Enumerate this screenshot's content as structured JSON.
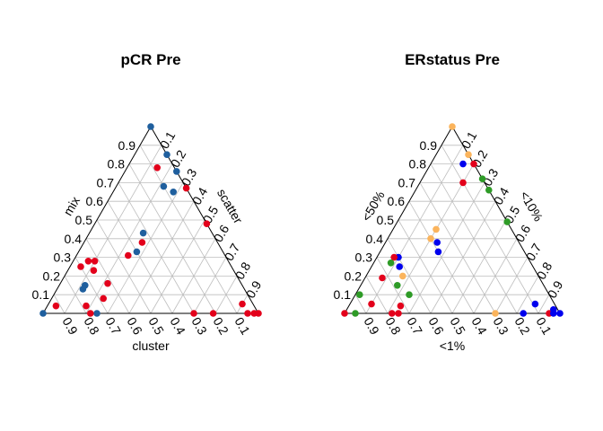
{
  "chart_data": [
    {
      "type": "scatter",
      "subtype": "ternary",
      "title": "pCR Pre",
      "axes": {
        "left": "mix",
        "right": "scatter",
        "bottom": "cluster"
      },
      "ticks": [
        "0.1",
        "0.2",
        "0.3",
        "0.4",
        "0.5",
        "0.6",
        "0.7",
        "0.8",
        "0.9"
      ],
      "grid": true,
      "points_format": "[bottom (cluster), left (mix), right (scatter), color]",
      "points": [
        [
          0.0,
          1.0,
          0.0,
          "#1f5f9e"
        ],
        [
          0.08,
          0.78,
          0.14,
          "#e3001b"
        ],
        [
          0.0,
          0.85,
          0.15,
          "#1f5f9e"
        ],
        [
          0.0,
          0.76,
          0.24,
          "#1f5f9e"
        ],
        [
          0.1,
          0.68,
          0.22,
          "#1f5f9e"
        ],
        [
          0.07,
          0.65,
          0.28,
          "#1f5f9e"
        ],
        [
          0.0,
          0.67,
          0.33,
          "#e3001b"
        ],
        [
          0.0,
          0.48,
          0.52,
          "#e3001b"
        ],
        [
          0.32,
          0.43,
          0.25,
          "#1f5f9e"
        ],
        [
          0.35,
          0.38,
          0.27,
          "#e3001b"
        ],
        [
          0.4,
          0.33,
          0.27,
          "#1f5f9e"
        ],
        [
          0.45,
          0.31,
          0.24,
          "#e3001b"
        ],
        [
          0.65,
          0.28,
          0.07,
          "#e3001b"
        ],
        [
          0.62,
          0.28,
          0.1,
          "#e3001b"
        ],
        [
          0.7,
          0.25,
          0.05,
          "#e3001b"
        ],
        [
          0.65,
          0.23,
          0.12,
          "#e3001b"
        ],
        [
          0.73,
          0.15,
          0.12,
          "#1f5f9e"
        ],
        [
          0.75,
          0.13,
          0.12,
          "#1f5f9e"
        ],
        [
          0.62,
          0.16,
          0.22,
          "#e3001b"
        ],
        [
          0.68,
          0.08,
          0.24,
          "#e3001b"
        ],
        [
          1.0,
          0.0,
          0.0,
          "#1f5f9e"
        ],
        [
          0.92,
          0.04,
          0.04,
          "#e3001b"
        ],
        [
          0.78,
          0.04,
          0.18,
          "#e3001b"
        ],
        [
          0.75,
          0.0,
          0.25,
          "#1f5f9e"
        ],
        [
          0.78,
          0.0,
          0.22,
          "#e3001b"
        ],
        [
          0.3,
          0.0,
          0.7,
          "#e3001b"
        ],
        [
          0.21,
          0.0,
          0.79,
          "#e3001b"
        ],
        [
          0.05,
          0.05,
          0.9,
          "#e3001b"
        ],
        [
          0.05,
          0.0,
          0.95,
          "#e3001b"
        ],
        [
          0.02,
          0.0,
          0.98,
          "#e3001b"
        ],
        [
          0.0,
          0.0,
          1.0,
          "#e3001b"
        ]
      ]
    },
    {
      "type": "scatter",
      "subtype": "ternary",
      "title": "ERstatus Pre",
      "axes": {
        "left": "<50%",
        "right": "<10%",
        "bottom": "<1%"
      },
      "ticks": [
        "0.1",
        "0.2",
        "0.3",
        "0.4",
        "0.5",
        "0.6",
        "0.7",
        "0.8",
        "0.9"
      ],
      "grid": true,
      "points_format": "[bottom (<1%), left (<50%), right (<10%), color]",
      "points": [
        [
          0.0,
          1.0,
          0.0,
          "#fbb45c"
        ],
        [
          0.0,
          0.85,
          0.15,
          "#fbb45c"
        ],
        [
          0.05,
          0.8,
          0.15,
          "#0000ee"
        ],
        [
          0.0,
          0.8,
          0.2,
          "#e3001b"
        ],
        [
          0.1,
          0.7,
          0.2,
          "#e3001b"
        ],
        [
          0.0,
          0.72,
          0.28,
          "#2e9b27"
        ],
        [
          0.0,
          0.66,
          0.34,
          "#2e9b27"
        ],
        [
          0.0,
          0.49,
          0.51,
          "#2e9b27"
        ],
        [
          0.35,
          0.45,
          0.2,
          "#fbb45c"
        ],
        [
          0.4,
          0.4,
          0.2,
          "#fbb45c"
        ],
        [
          0.38,
          0.38,
          0.24,
          "#0000ee"
        ],
        [
          0.4,
          0.33,
          0.27,
          "#0000ee"
        ],
        [
          0.6,
          0.3,
          0.1,
          "#0000ee"
        ],
        [
          0.62,
          0.3,
          0.08,
          "#e3001b"
        ],
        [
          0.65,
          0.27,
          0.08,
          "#2e9b27"
        ],
        [
          0.62,
          0.25,
          0.13,
          "#0000ee"
        ],
        [
          0.63,
          0.2,
          0.17,
          "#fbb45c"
        ],
        [
          0.73,
          0.19,
          0.08,
          "#e3001b"
        ],
        [
          0.68,
          0.15,
          0.17,
          "#2e9b27"
        ],
        [
          0.65,
          0.1,
          0.25,
          "#2e9b27"
        ],
        [
          0.88,
          0.1,
          0.02,
          "#2e9b27"
        ],
        [
          0.85,
          0.05,
          0.1,
          "#e3001b"
        ],
        [
          0.95,
          0.0,
          0.05,
          "#2e9b27"
        ],
        [
          1.0,
          0.0,
          0.0,
          "#e3001b"
        ],
        [
          0.78,
          0.0,
          0.22,
          "#e3001b"
        ],
        [
          0.75,
          0.0,
          0.25,
          "#e3001b"
        ],
        [
          0.72,
          0.04,
          0.24,
          "#e3001b"
        ],
        [
          0.3,
          0.0,
          0.7,
          "#fbb45c"
        ],
        [
          0.17,
          0.0,
          0.83,
          "#0000ee"
        ],
        [
          0.09,
          0.05,
          0.86,
          "#0000ee"
        ],
        [
          0.05,
          0.0,
          0.95,
          "#e3001b"
        ],
        [
          0.03,
          0.0,
          0.97,
          "#0000ee"
        ],
        [
          0.02,
          0.02,
          0.96,
          "#0000ee"
        ],
        [
          0.0,
          0.0,
          1.0,
          "#0000ee"
        ]
      ]
    }
  ]
}
